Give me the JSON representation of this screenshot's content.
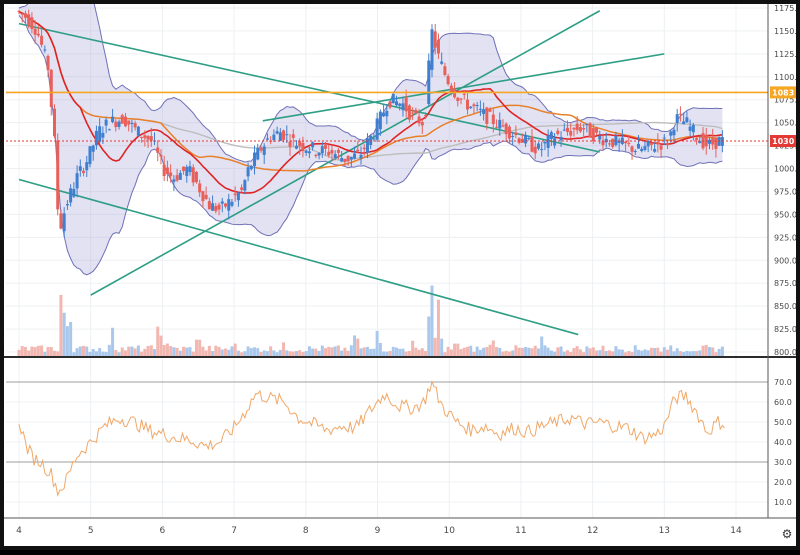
{
  "chart_data": [
    {
      "type": "candlestick",
      "title": "",
      "xlabel": "",
      "ylabel": "",
      "x_ticks": [
        "4",
        "5",
        "6",
        "7",
        "8",
        "9",
        "10",
        "11",
        "12",
        "13",
        "14"
      ],
      "x_range": [
        4,
        14.3
      ],
      "ylim": [
        800,
        1175
      ],
      "y_ticks": [
        "800.0",
        "825.0",
        "850.0",
        "875.0",
        "900.0",
        "925.0",
        "950.0",
        "975.0",
        "1000.0",
        "1025.0",
        "1050.0",
        "1075.0",
        "1100.0",
        "1125.0",
        "1150.0",
        "1175.0"
      ],
      "price_labels": [
        {
          "text": "1083",
          "value": 1083,
          "color": "#f5a623"
        },
        {
          "text": "1030",
          "value": 1030,
          "color": "#e53935"
        }
      ],
      "close_series": [
        [
          4.0,
          1172
        ],
        [
          4.15,
          1165
        ],
        [
          4.3,
          1150
        ],
        [
          4.45,
          1110
        ],
        [
          4.55,
          1020
        ],
        [
          4.6,
          930
        ],
        [
          4.7,
          960
        ],
        [
          4.85,
          990
        ],
        [
          5.0,
          1010
        ],
        [
          5.15,
          1040
        ],
        [
          5.3,
          1050
        ],
        [
          5.5,
          1055
        ],
        [
          5.7,
          1040
        ],
        [
          5.9,
          1030
        ],
        [
          6.05,
          1000
        ],
        [
          6.2,
          990
        ],
        [
          6.4,
          1000
        ],
        [
          6.55,
          980
        ],
        [
          6.7,
          960
        ],
        [
          6.85,
          955
        ],
        [
          7.0,
          965
        ],
        [
          7.15,
          975
        ],
        [
          7.25,
          1000
        ],
        [
          7.4,
          1020
        ],
        [
          7.55,
          1035
        ],
        [
          7.7,
          1040
        ],
        [
          7.85,
          1030
        ],
        [
          8.0,
          1025
        ],
        [
          8.2,
          1020
        ],
        [
          8.4,
          1018
        ],
        [
          8.6,
          1010
        ],
        [
          8.8,
          1015
        ],
        [
          9.0,
          1040
        ],
        [
          9.2,
          1075
        ],
        [
          9.4,
          1070
        ],
        [
          9.55,
          1055
        ],
        [
          9.7,
          1050
        ],
        [
          9.8,
          1150
        ],
        [
          9.9,
          1120
        ],
        [
          10.0,
          1100
        ],
        [
          10.15,
          1080
        ],
        [
          10.3,
          1070
        ],
        [
          10.5,
          1060
        ],
        [
          10.7,
          1050
        ],
        [
          10.9,
          1040
        ],
        [
          11.1,
          1030
        ],
        [
          11.3,
          1020
        ],
        [
          11.5,
          1035
        ],
        [
          11.7,
          1040
        ],
        [
          11.9,
          1045
        ],
        [
          12.1,
          1035
        ],
        [
          12.3,
          1030
        ],
        [
          12.5,
          1025
        ],
        [
          12.7,
          1020
        ],
        [
          12.9,
          1025
        ],
        [
          13.1,
          1030
        ],
        [
          13.2,
          1055
        ],
        [
          13.35,
          1050
        ],
        [
          13.5,
          1035
        ],
        [
          13.65,
          1025
        ],
        [
          13.8,
          1030
        ]
      ],
      "volume_series": [
        [
          4.6,
          65
        ],
        [
          4.7,
          40
        ],
        [
          5.3,
          25
        ],
        [
          5.95,
          28
        ],
        [
          6.05,
          14
        ],
        [
          6.5,
          18
        ],
        [
          7.0,
          9
        ],
        [
          7.7,
          9
        ],
        [
          8.7,
          20
        ],
        [
          9.0,
          22
        ],
        [
          9.5,
          12
        ],
        [
          9.75,
          70
        ],
        [
          9.85,
          45
        ],
        [
          10.1,
          14
        ],
        [
          10.6,
          13
        ],
        [
          11.3,
          16
        ],
        [
          12.0,
          8
        ],
        [
          12.6,
          7
        ],
        [
          13.0,
          7
        ],
        [
          13.6,
          7
        ]
      ],
      "volume_scale": [
        0,
        100
      ]
    },
    {
      "type": "line",
      "title": "",
      "xlabel": "",
      "ylabel": "",
      "ylim": [
        2,
        80
      ],
      "y_ticks": [
        "10.0",
        "20.0",
        "30.0",
        "40.0",
        "50.0",
        "60.0",
        "70.0"
      ],
      "guides": [
        30,
        70
      ],
      "series": [
        {
          "values": [
            [
              4.0,
              51
            ],
            [
              4.1,
              38
            ],
            [
              4.2,
              32
            ],
            [
              4.3,
              30
            ],
            [
              4.45,
              24
            ],
            [
              4.55,
              15
            ],
            [
              4.65,
              20
            ],
            [
              4.8,
              33
            ],
            [
              5.0,
              40
            ],
            [
              5.2,
              48
            ],
            [
              5.4,
              52
            ],
            [
              5.6,
              50
            ],
            [
              5.8,
              46
            ],
            [
              6.0,
              44
            ],
            [
              6.2,
              42
            ],
            [
              6.4,
              41
            ],
            [
              6.6,
              38
            ],
            [
              6.8,
              40
            ],
            [
              7.0,
              47
            ],
            [
              7.15,
              55
            ],
            [
              7.3,
              64
            ],
            [
              7.5,
              62
            ],
            [
              7.7,
              60
            ],
            [
              7.9,
              52
            ],
            [
              8.1,
              49
            ],
            [
              8.3,
              46
            ],
            [
              8.5,
              48
            ],
            [
              8.7,
              47
            ],
            [
              8.9,
              56
            ],
            [
              9.1,
              64
            ],
            [
              9.3,
              58
            ],
            [
              9.5,
              57
            ],
            [
              9.65,
              60
            ],
            [
              9.75,
              70
            ],
            [
              9.9,
              58
            ],
            [
              10.1,
              50
            ],
            [
              10.3,
              46
            ],
            [
              10.5,
              48
            ],
            [
              10.7,
              44
            ],
            [
              10.9,
              47
            ],
            [
              11.1,
              45
            ],
            [
              11.3,
              48
            ],
            [
              11.5,
              50
            ],
            [
              11.7,
              52
            ],
            [
              11.9,
              49
            ],
            [
              12.1,
              50
            ],
            [
              12.3,
              48
            ],
            [
              12.5,
              47
            ],
            [
              12.7,
              42
            ],
            [
              12.9,
              44
            ],
            [
              13.0,
              48
            ],
            [
              13.15,
              62
            ],
            [
              13.3,
              63
            ],
            [
              13.45,
              55
            ],
            [
              13.6,
              45
            ],
            [
              13.75,
              50
            ],
            [
              13.85,
              49
            ]
          ]
        }
      ]
    }
  ]
}
